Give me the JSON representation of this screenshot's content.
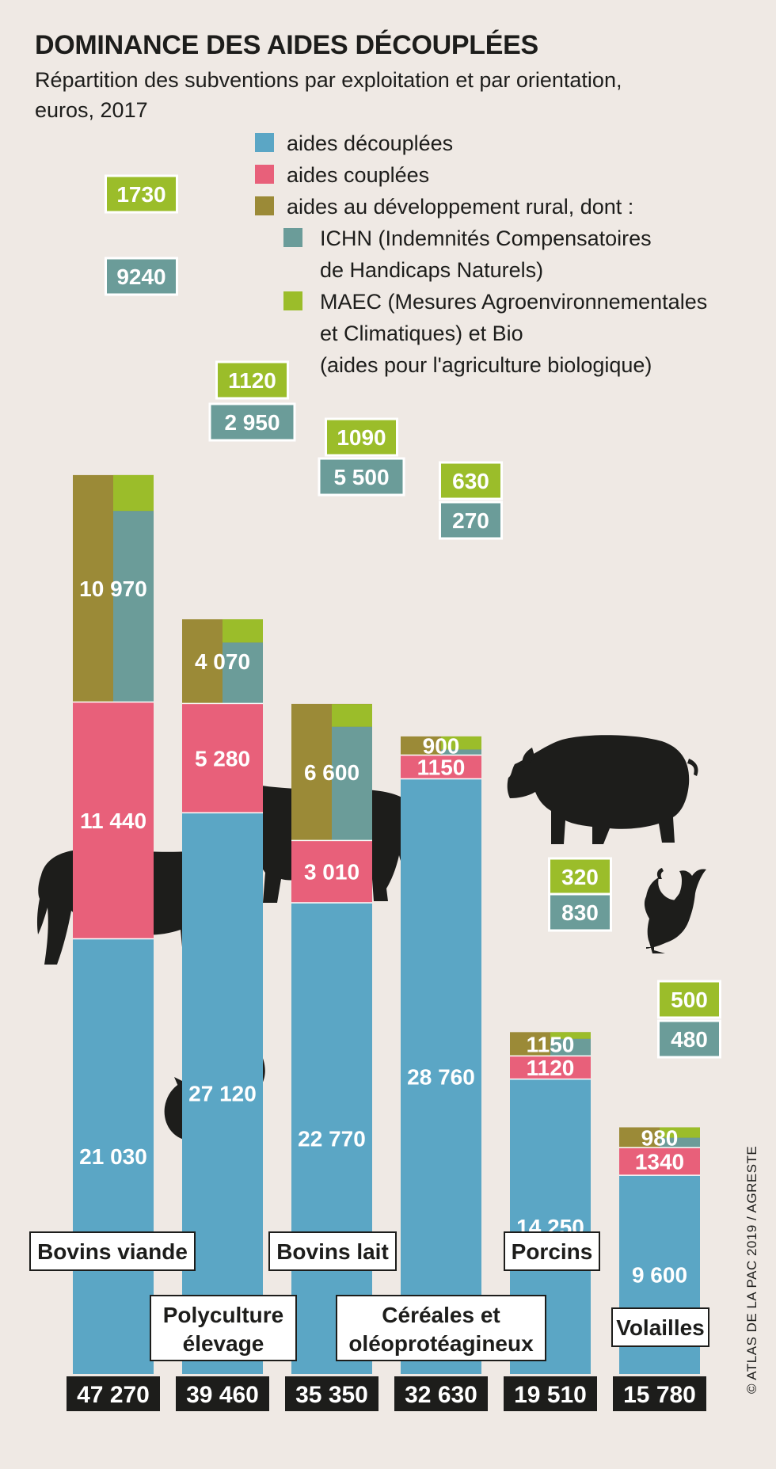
{
  "title": "DOMINANCE DES AIDES DÉCOUPLÉES",
  "subtitle_line1": "Répartition des subventions par exploitation et par orientation,",
  "subtitle_line2": "euros, 2017",
  "credit": "© ATLAS DE LA PAC 2019 / AGRESTE",
  "colors": {
    "decouplees": "#5ba6c5",
    "couplees": "#e8607a",
    "developpement_rural": "#9b8a37",
    "ichn": "#6b9c99",
    "maec": "#9bbd2a",
    "label_dark": "#1d1d1b",
    "background": "#efe9e4"
  },
  "icons": [
    "cow-icon",
    "dairy-cow-icon",
    "pig-icon",
    "chicken-icon",
    "fruit-vegetable-icon",
    "wheat-icon"
  ],
  "chart_data": {
    "type": "bar",
    "stacked": true,
    "unit": "euros",
    "legend": {
      "placement": "top-right",
      "entries": [
        {
          "key": "decouplees",
          "lines": [
            "aides découplées"
          ]
        },
        {
          "key": "couplees",
          "lines": [
            "aides couplées"
          ]
        },
        {
          "key": "developpement_rural",
          "lines": [
            "aides au développement rural, dont :"
          ]
        },
        {
          "key": "ichn",
          "lines": [
            "ICHN (Indemnités Compensatoires",
            "de Handicaps Naturels)"
          ]
        },
        {
          "key": "maec",
          "lines": [
            "MAEC (Mesures Agroenvironnementales",
            "et Climatiques) et Bio",
            "(aides pour l'agriculture biologique)"
          ]
        }
      ]
    },
    "categories": [
      {
        "name_lines": [
          "Bovins viande"
        ],
        "decouplees": 21030,
        "couplees": 11440,
        "developpement_rural": 10970,
        "ichn": 9240,
        "maec": 1730,
        "total": 47270,
        "labels": {
          "decouplees": "21 030",
          "couplees": "11 440",
          "developpement_rural": "10 970",
          "ichn": "9240",
          "maec": "1730",
          "total": "47 270"
        }
      },
      {
        "name_lines": [
          "Polyculture",
          "élevage"
        ],
        "decouplees": 27120,
        "couplees": 5280,
        "developpement_rural": 4070,
        "ichn": 2950,
        "maec": 1120,
        "total": 39460,
        "labels": {
          "decouplees": "27 120",
          "couplees": "5 280",
          "developpement_rural": "4 070",
          "ichn": "2 950",
          "maec": "1120",
          "total": "39 460"
        }
      },
      {
        "name_lines": [
          "Bovins lait"
        ],
        "decouplees": 22770,
        "couplees": 3010,
        "developpement_rural": 6600,
        "ichn": 5500,
        "maec": 1090,
        "total": 35350,
        "labels": {
          "decouplees": "22 770",
          "couplees": "3 010",
          "developpement_rural": "6 600",
          "ichn": "5 500",
          "maec": "1090",
          "total": "35 350"
        }
      },
      {
        "name_lines": [
          "Céréales et",
          "oléoprotéagineux"
        ],
        "decouplees": 28760,
        "couplees": 1150,
        "developpement_rural": 900,
        "ichn": 270,
        "maec": 630,
        "total": 32630,
        "labels": {
          "decouplees": "28 760",
          "couplees": "1150",
          "developpement_rural": "900",
          "ichn": "270",
          "maec": "630",
          "total": "32 630"
        }
      },
      {
        "name_lines": [
          "Porcins"
        ],
        "decouplees": 14250,
        "couplees": 1120,
        "developpement_rural": 1150,
        "ichn": 830,
        "maec": 320,
        "total": 19510,
        "labels": {
          "decouplees": "14 250",
          "couplees": "1120",
          "developpement_rural": "1150",
          "ichn": "830",
          "maec": "320",
          "total": "19 510"
        }
      },
      {
        "name_lines": [
          "Volailles"
        ],
        "decouplees": 9600,
        "couplees": 1340,
        "developpement_rural": 980,
        "ichn": 480,
        "maec": 500,
        "total": 15780,
        "labels": {
          "decouplees": "9 600",
          "couplees": "1340",
          "developpement_rural": "980",
          "ichn": "480",
          "maec": "500",
          "total": "15 780"
        }
      }
    ]
  }
}
